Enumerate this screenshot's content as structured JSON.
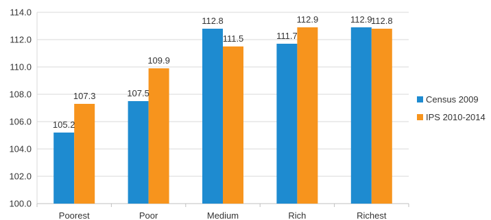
{
  "chart_data": {
    "type": "bar",
    "title": "",
    "xlabel": "",
    "ylabel": "",
    "categories": [
      "Poorest",
      "Poor",
      "Medium",
      "Rich",
      "Richest"
    ],
    "series": [
      {
        "name": "Census 2009",
        "color": "#1e8bd0",
        "values": [
          105.2,
          107.5,
          112.8,
          111.7,
          112.9
        ],
        "labels": [
          "105.2",
          "107.5",
          "112.8",
          "111.7",
          "112.9"
        ]
      },
      {
        "name": "IPS 2010-2014",
        "color": "#f7941d",
        "values": [
          107.3,
          109.9,
          111.5,
          112.9,
          112.8
        ],
        "labels": [
          "107.3",
          "109.9",
          "111.5",
          "112.9",
          "112.8"
        ]
      }
    ],
    "ylim": [
      100.0,
      114.0
    ],
    "yticks": [
      100.0,
      102.0,
      104.0,
      106.0,
      108.0,
      110.0,
      112.0,
      114.0
    ],
    "ytick_labels": [
      "100.0",
      "102.0",
      "104.0",
      "106.0",
      "108.0",
      "110.0",
      "112.0",
      "114.0"
    ],
    "grid": true,
    "legend_position": "right"
  }
}
